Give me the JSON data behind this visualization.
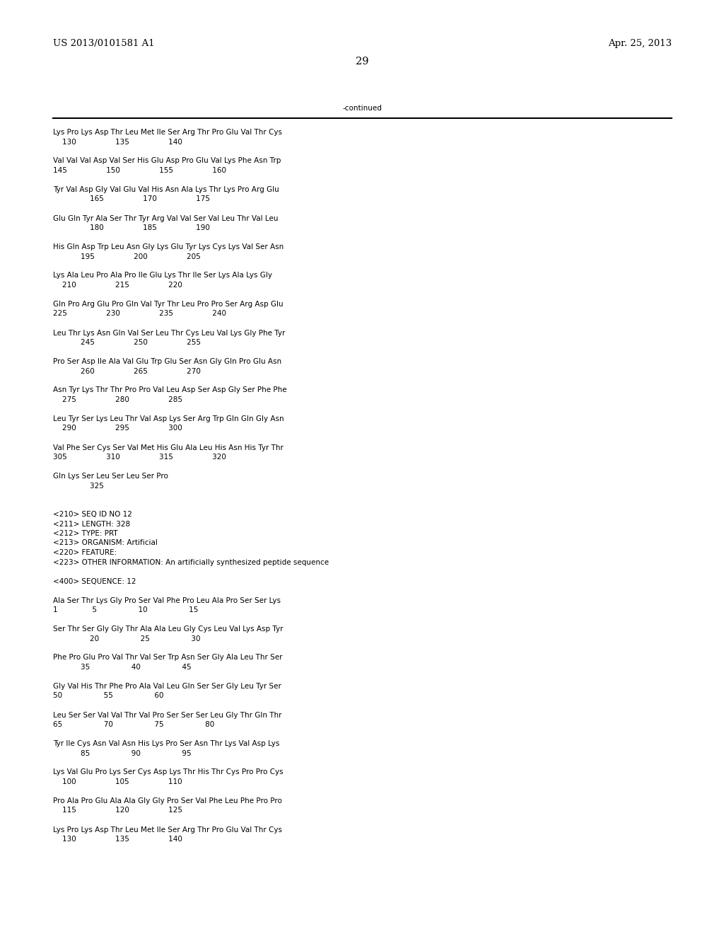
{
  "header_left": "US 2013/0101581 A1",
  "header_right": "Apr. 25, 2013",
  "page_number": "29",
  "continued_text": "-continued",
  "background_color": "#ffffff",
  "text_color": "#000000",
  "font_size": 7.5,
  "mono_font": "Courier New",
  "header_font_size": 9.5,
  "page_num_font_size": 10.5,
  "content_lines": [
    "Lys Pro Lys Asp Thr Leu Met Ile Ser Arg Thr Pro Glu Val Thr Cys",
    "    130                 135                 140",
    "",
    "Val Val Val Asp Val Ser His Glu Asp Pro Glu Val Lys Phe Asn Trp",
    "145                 150                 155                 160",
    "",
    "Tyr Val Asp Gly Val Glu Val His Asn Ala Lys Thr Lys Pro Arg Glu",
    "                165                 170                 175",
    "",
    "Glu Gln Tyr Ala Ser Thr Tyr Arg Val Val Ser Val Leu Thr Val Leu",
    "                180                 185                 190",
    "",
    "His Gln Asp Trp Leu Asn Gly Lys Glu Tyr Lys Cys Lys Val Ser Asn",
    "            195                 200                 205",
    "",
    "Lys Ala Leu Pro Ala Pro Ile Glu Lys Thr Ile Ser Lys Ala Lys Gly",
    "    210                 215                 220",
    "",
    "Gln Pro Arg Glu Pro Gln Val Tyr Thr Leu Pro Pro Ser Arg Asp Glu",
    "225                 230                 235                 240",
    "",
    "Leu Thr Lys Asn Gln Val Ser Leu Thr Cys Leu Val Lys Gly Phe Tyr",
    "            245                 250                 255",
    "",
    "Pro Ser Asp Ile Ala Val Glu Trp Glu Ser Asn Gly Gln Pro Glu Asn",
    "            260                 265                 270",
    "",
    "Asn Tyr Lys Thr Thr Pro Pro Val Leu Asp Ser Asp Gly Ser Phe Phe",
    "    275                 280                 285",
    "",
    "Leu Tyr Ser Lys Leu Thr Val Asp Lys Ser Arg Trp Gln Gln Gly Asn",
    "    290                 295                 300",
    "",
    "Val Phe Ser Cys Ser Val Met His Glu Ala Leu His Asn His Tyr Thr",
    "305                 310                 315                 320",
    "",
    "Gln Lys Ser Leu Ser Leu Ser Pro",
    "                325",
    "",
    "",
    "<210> SEQ ID NO 12",
    "<211> LENGTH: 328",
    "<212> TYPE: PRT",
    "<213> ORGANISM: Artificial",
    "<220> FEATURE:",
    "<223> OTHER INFORMATION: An artificially synthesized peptide sequence",
    "",
    "<400> SEQUENCE: 12",
    "",
    "Ala Ser Thr Lys Gly Pro Ser Val Phe Pro Leu Ala Pro Ser Ser Lys",
    "1               5                  10                  15",
    "",
    "Ser Thr Ser Gly Gly Thr Ala Ala Leu Gly Cys Leu Val Lys Asp Tyr",
    "                20                  25                  30",
    "",
    "Phe Pro Glu Pro Val Thr Val Ser Trp Asn Ser Gly Ala Leu Thr Ser",
    "            35                  40                  45",
    "",
    "Gly Val His Thr Phe Pro Ala Val Leu Gln Ser Ser Gly Leu Tyr Ser",
    "50                  55                  60",
    "",
    "Leu Ser Ser Val Val Thr Val Pro Ser Ser Ser Leu Gly Thr Gln Thr",
    "65                  70                  75                  80",
    "",
    "Tyr Ile Cys Asn Val Asn His Lys Pro Ser Asn Thr Lys Val Asp Lys",
    "            85                  90                  95",
    "",
    "Lys Val Glu Pro Lys Ser Cys Asp Lys Thr His Thr Cys Pro Pro Cys",
    "    100                 105                 110",
    "",
    "Pro Ala Pro Glu Ala Ala Gly Gly Pro Ser Val Phe Leu Phe Pro Pro",
    "    115                 120                 125",
    "",
    "Lys Pro Lys Asp Thr Leu Met Ile Ser Arg Thr Pro Glu Val Thr Cys",
    "    130                 135                 140"
  ]
}
